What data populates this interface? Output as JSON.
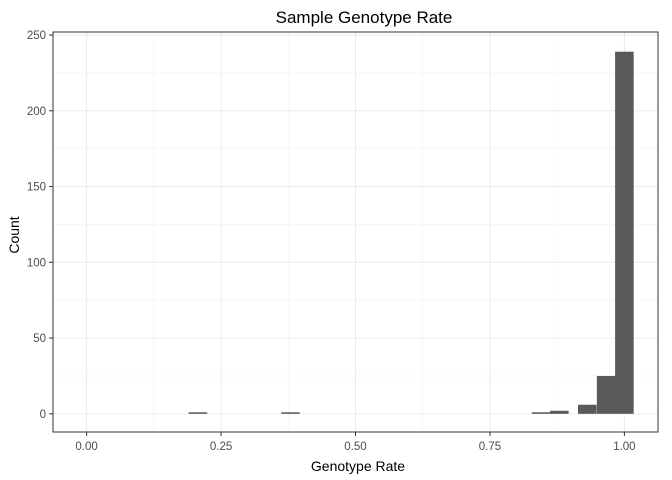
{
  "chart_data": {
    "type": "bar",
    "subtype": "histogram",
    "title": "Sample Genotype Rate",
    "xlabel": "Genotype Rate",
    "ylabel": "Count",
    "xlim": [
      -0.0625,
      1.0625
    ],
    "ylim": [
      -12,
      252
    ],
    "x_ticks": [
      0.0,
      0.25,
      0.5,
      0.75,
      1.0
    ],
    "x_tick_labels": [
      "0.00",
      "0.25",
      "0.50",
      "0.75",
      "1.00"
    ],
    "y_ticks": [
      0,
      50,
      100,
      150,
      200,
      250
    ],
    "y_tick_labels": [
      "0",
      "50",
      "100",
      "150",
      "200",
      "250"
    ],
    "bin_width": 0.0345,
    "bins": [
      {
        "x": 0.207,
        "count": 1
      },
      {
        "x": 0.379,
        "count": 1
      },
      {
        "x": 0.845,
        "count": 1
      },
      {
        "x": 0.879,
        "count": 2
      },
      {
        "x": 0.931,
        "count": 6
      },
      {
        "x": 0.966,
        "count": 25
      },
      {
        "x": 1.0,
        "count": 239
      }
    ],
    "bar_color": "#595959",
    "grid": true,
    "legend": false
  }
}
